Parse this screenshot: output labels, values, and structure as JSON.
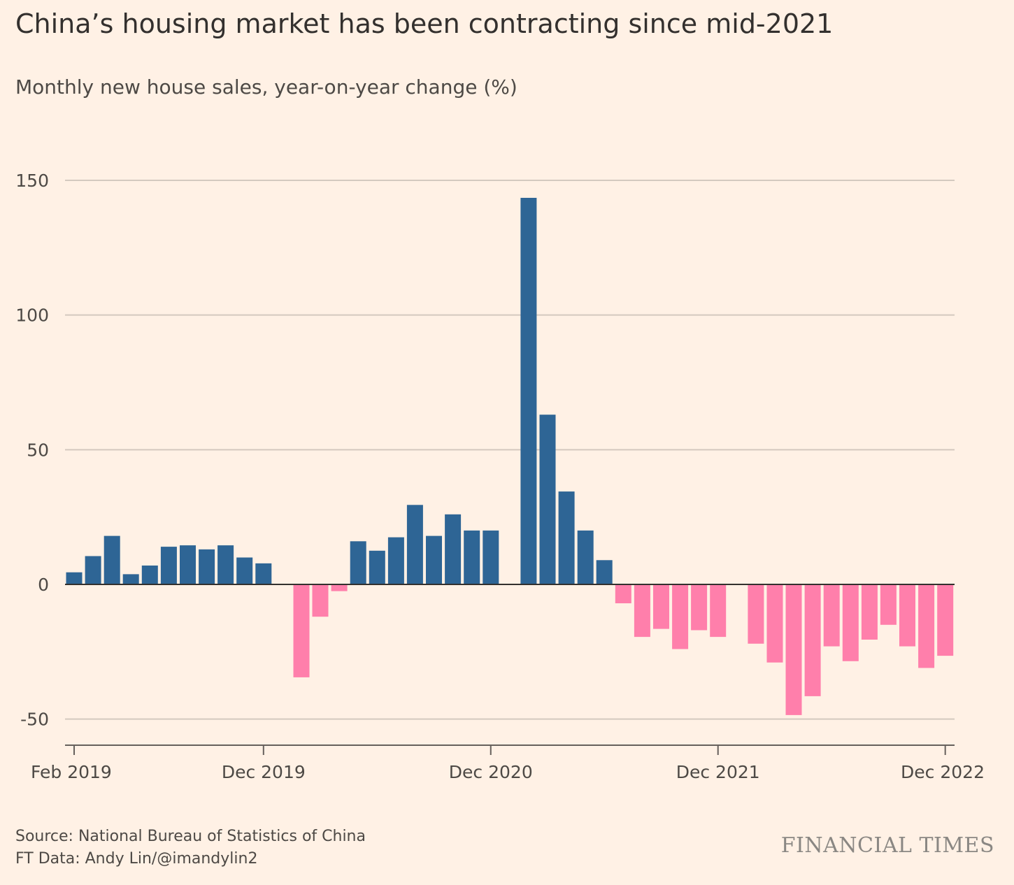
{
  "chart_data": {
    "type": "bar",
    "title": "China’s housing market has been contracting since mid-2021",
    "subtitle": "Monthly new house sales, year-on-year change (%)",
    "ylabel": "",
    "xlabel": "",
    "ylim": [
      -60,
      150
    ],
    "yticks": [
      150,
      100,
      50,
      0,
      -50
    ],
    "xtick_labels": [
      {
        "label": "Feb 2019",
        "month_index": 0
      },
      {
        "label": "Dec 2019",
        "month_index": 10
      },
      {
        "label": "Dec 2020",
        "month_index": 22
      },
      {
        "label": "Dec 2021",
        "month_index": 34
      },
      {
        "label": "Dec 2022",
        "month_index": 46
      }
    ],
    "categories": [
      "Feb 2019",
      "Mar 2019",
      "Apr 2019",
      "May 2019",
      "Jun 2019",
      "Jul 2019",
      "Aug 2019",
      "Sep 2019",
      "Oct 2019",
      "Nov 2019",
      "Dec 2019",
      "Jan 2020",
      "Feb 2020",
      "Mar 2020",
      "Apr 2020",
      "May 2020",
      "Jun 2020",
      "Jul 2020",
      "Aug 2020",
      "Sep 2020",
      "Oct 2020",
      "Nov 2020",
      "Dec 2020",
      "Jan 2021",
      "Feb 2021",
      "Mar 2021",
      "Apr 2021",
      "May 2021",
      "Jun 2021",
      "Jul 2021",
      "Aug 2021",
      "Sep 2021",
      "Oct 2021",
      "Nov 2021",
      "Dec 2021",
      "Jan 2022",
      "Feb 2022",
      "Mar 2022",
      "Apr 2022",
      "May 2022",
      "Jun 2022",
      "Jul 2022",
      "Aug 2022",
      "Sep 2022",
      "Oct 2022",
      "Nov 2022",
      "Dec 2022"
    ],
    "bars": [
      {
        "x": 0,
        "value": 4.5
      },
      {
        "x": 1,
        "value": 10.5
      },
      {
        "x": 2,
        "value": 18
      },
      {
        "x": 3,
        "value": 3.8
      },
      {
        "x": 4,
        "value": 7
      },
      {
        "x": 5,
        "value": 14
      },
      {
        "x": 6,
        "value": 14.5
      },
      {
        "x": 7,
        "value": 13
      },
      {
        "x": 8,
        "value": 14.5
      },
      {
        "x": 9,
        "value": 10
      },
      {
        "x": 10,
        "value": 7.8
      },
      {
        "x": 12,
        "value": -34.5
      },
      {
        "x": 13,
        "value": -12
      },
      {
        "x": 14,
        "value": -2.5
      },
      {
        "x": 15,
        "value": 16
      },
      {
        "x": 16,
        "value": 12.5
      },
      {
        "x": 17,
        "value": 17.5
      },
      {
        "x": 18,
        "value": 29.5
      },
      {
        "x": 19,
        "value": 18
      },
      {
        "x": 20,
        "value": 26
      },
      {
        "x": 21,
        "value": 20
      },
      {
        "x": 22,
        "value": 20
      },
      {
        "x": 24,
        "value": 143.5
      },
      {
        "x": 25,
        "value": 63
      },
      {
        "x": 26,
        "value": 34.5
      },
      {
        "x": 27,
        "value": 20
      },
      {
        "x": 28,
        "value": 9
      },
      {
        "x": 29,
        "value": -7
      },
      {
        "x": 30,
        "value": -19.5
      },
      {
        "x": 31,
        "value": -16.5
      },
      {
        "x": 32,
        "value": -24
      },
      {
        "x": 33,
        "value": -17
      },
      {
        "x": 34,
        "value": -19.5
      },
      {
        "x": 36,
        "value": -22
      },
      {
        "x": 37,
        "value": -29
      },
      {
        "x": 38,
        "value": -48.5
      },
      {
        "x": 39,
        "value": -41.5
      },
      {
        "x": 40,
        "value": -23
      },
      {
        "x": 41,
        "value": -28.5
      },
      {
        "x": 42,
        "value": -20.5
      },
      {
        "x": 43,
        "value": -15
      },
      {
        "x": 44,
        "value": -23
      },
      {
        "x": 45,
        "value": -31
      },
      {
        "x": 46,
        "value": -26.5
      }
    ],
    "colors": {
      "positive": "#2e6595",
      "negative": "#ff7fab",
      "grid": "#d4c9bf",
      "axis": "#33302e",
      "tick": "#66605c"
    }
  },
  "footer": {
    "source": "Source: National Bureau of Statistics of China",
    "credit": "FT Data: Andy Lin/@imandylin2",
    "brand": "FINANCIAL TIMES"
  }
}
